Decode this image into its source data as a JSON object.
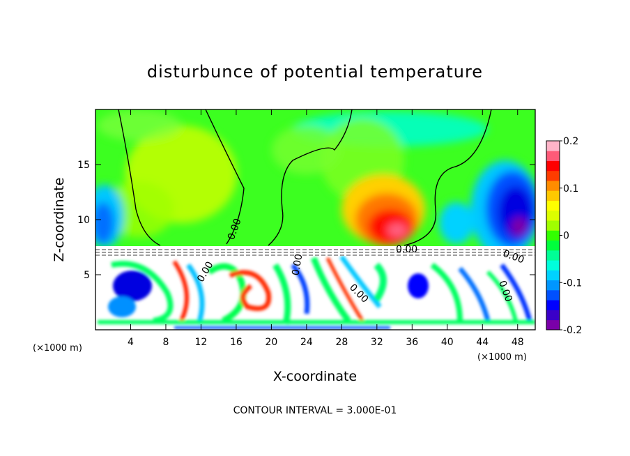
{
  "chart_data": {
    "type": "heatmap",
    "title": "disturbunce of potential temperature",
    "xlabel": "X-coordinate",
    "ylabel": "Z-coordinate",
    "x_units": "(×1000 m)",
    "y_units": "(×1000 m)",
    "xlim": [
      0,
      50
    ],
    "ylim": [
      0,
      20
    ],
    "x_ticks": [
      4,
      8,
      12,
      16,
      20,
      24,
      28,
      32,
      36,
      40,
      44,
      48
    ],
    "y_ticks": [
      5,
      10,
      15
    ],
    "x_tick_labels": [
      "4",
      "8",
      "12",
      "16",
      "20",
      "24",
      "28",
      "32",
      "36",
      "40",
      "44",
      "48"
    ],
    "y_tick_labels": [
      "5",
      "10",
      "15"
    ],
    "colorbar": {
      "range": [
        -0.2,
        0.2
      ],
      "ticks": [
        -0.2,
        -0.1,
        0,
        0.1,
        0.2
      ],
      "tick_labels": [
        "-0.2",
        "-0.1",
        "0",
        "0.1",
        "0.2"
      ],
      "colors": [
        "#7a00a8",
        "#3a00c8",
        "#0000ff",
        "#0050ff",
        "#0096ff",
        "#00d2ff",
        "#00ffdc",
        "#00ff96",
        "#00ff3c",
        "#32ff00",
        "#a0ff00",
        "#dcff00",
        "#ffff00",
        "#ffc800",
        "#ff8c00",
        "#ff3c00",
        "#ff0000",
        "#ff5a78",
        "#ffb4c8"
      ]
    },
    "contour_labels": [
      "0.00",
      "0.00",
      "0.00",
      "0.00",
      "0.00",
      "0.00",
      "0.00"
    ],
    "contour_interval_text": "CONTOUR INTERVAL = 3.000E-01",
    "regions": [
      {
        "x": 2,
        "z": 14,
        "value": 0.01
      },
      {
        "x": 9,
        "z": 15,
        "value": 0.05
      },
      {
        "x": 20,
        "z": 12,
        "value": -0.01
      },
      {
        "x": 28,
        "z": 16,
        "value": 0.02
      },
      {
        "x": 33,
        "z": 10,
        "value": 0.16
      },
      {
        "x": 47,
        "z": 10,
        "value": -0.17
      },
      {
        "x": 42,
        "z": 10,
        "value": -0.08
      },
      {
        "x": 1,
        "z": 10,
        "value": -0.1
      }
    ]
  }
}
